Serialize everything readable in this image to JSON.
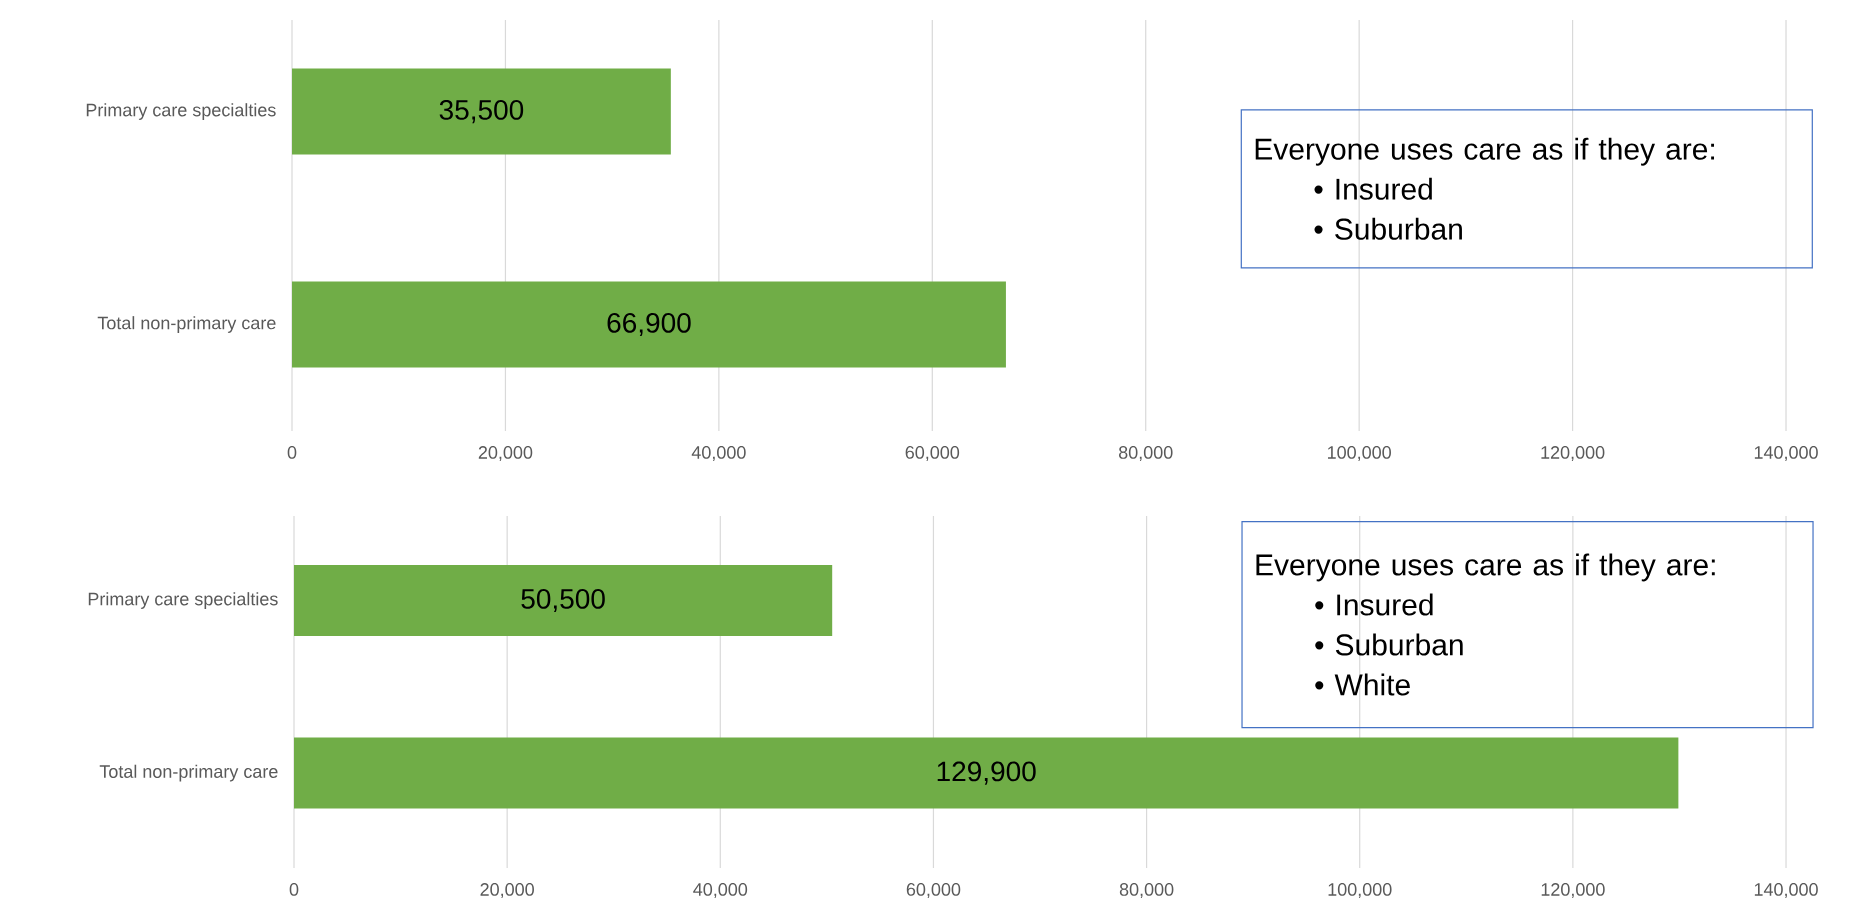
{
  "chart_data": [
    {
      "type": "bar",
      "orientation": "horizontal",
      "categories": [
        "Primary care specialties",
        "Total non-primary care"
      ],
      "values": [
        35500,
        66900
      ],
      "value_labels": [
        "35,500",
        "66,900"
      ],
      "color": "#70ad47",
      "xlim": [
        0,
        140000
      ],
      "xticks": [
        0,
        {
          "value": 20000,
          "label": "20,000"
        },
        {
          "value": 40000,
          "label": "40,000"
        },
        {
          "value": 60000,
          "label": "60,000"
        },
        {
          "value": 80000,
          "label": "80,000"
        },
        {
          "value": 100000,
          "label": "100,000"
        },
        {
          "value": 120000,
          "label": "120,000"
        },
        {
          "value": 140000,
          "label": "140,000"
        }
      ],
      "grid": "x",
      "annotations": [
        "Everyone uses care as if they are:",
        "•      Insured",
        "•      Suburban"
      ]
    },
    {
      "type": "bar",
      "orientation": "horizontal",
      "categories": [
        "Primary care specialties",
        "Total non-primary care"
      ],
      "values": [
        50500,
        129900
      ],
      "value_labels": [
        "50,500",
        "129,900"
      ],
      "color": "#70ad47",
      "xlim": [
        0,
        140000
      ],
      "xticks": [
        0,
        {
          "value": 20000,
          "label": "20,000"
        },
        {
          "value": 40000,
          "label": "40,000"
        },
        {
          "value": 60000,
          "label": "60,000"
        },
        {
          "value": 80000,
          "label": "80,000"
        },
        {
          "value": 100000,
          "label": "100,000"
        },
        {
          "value": 120000,
          "label": "120,000"
        },
        {
          "value": 140000,
          "label": "140,000"
        }
      ],
      "grid": "x",
      "annotations": [
        "Everyone uses care as if they are:",
        "•      Insured",
        "•      Suburban",
        "•      White"
      ]
    }
  ]
}
